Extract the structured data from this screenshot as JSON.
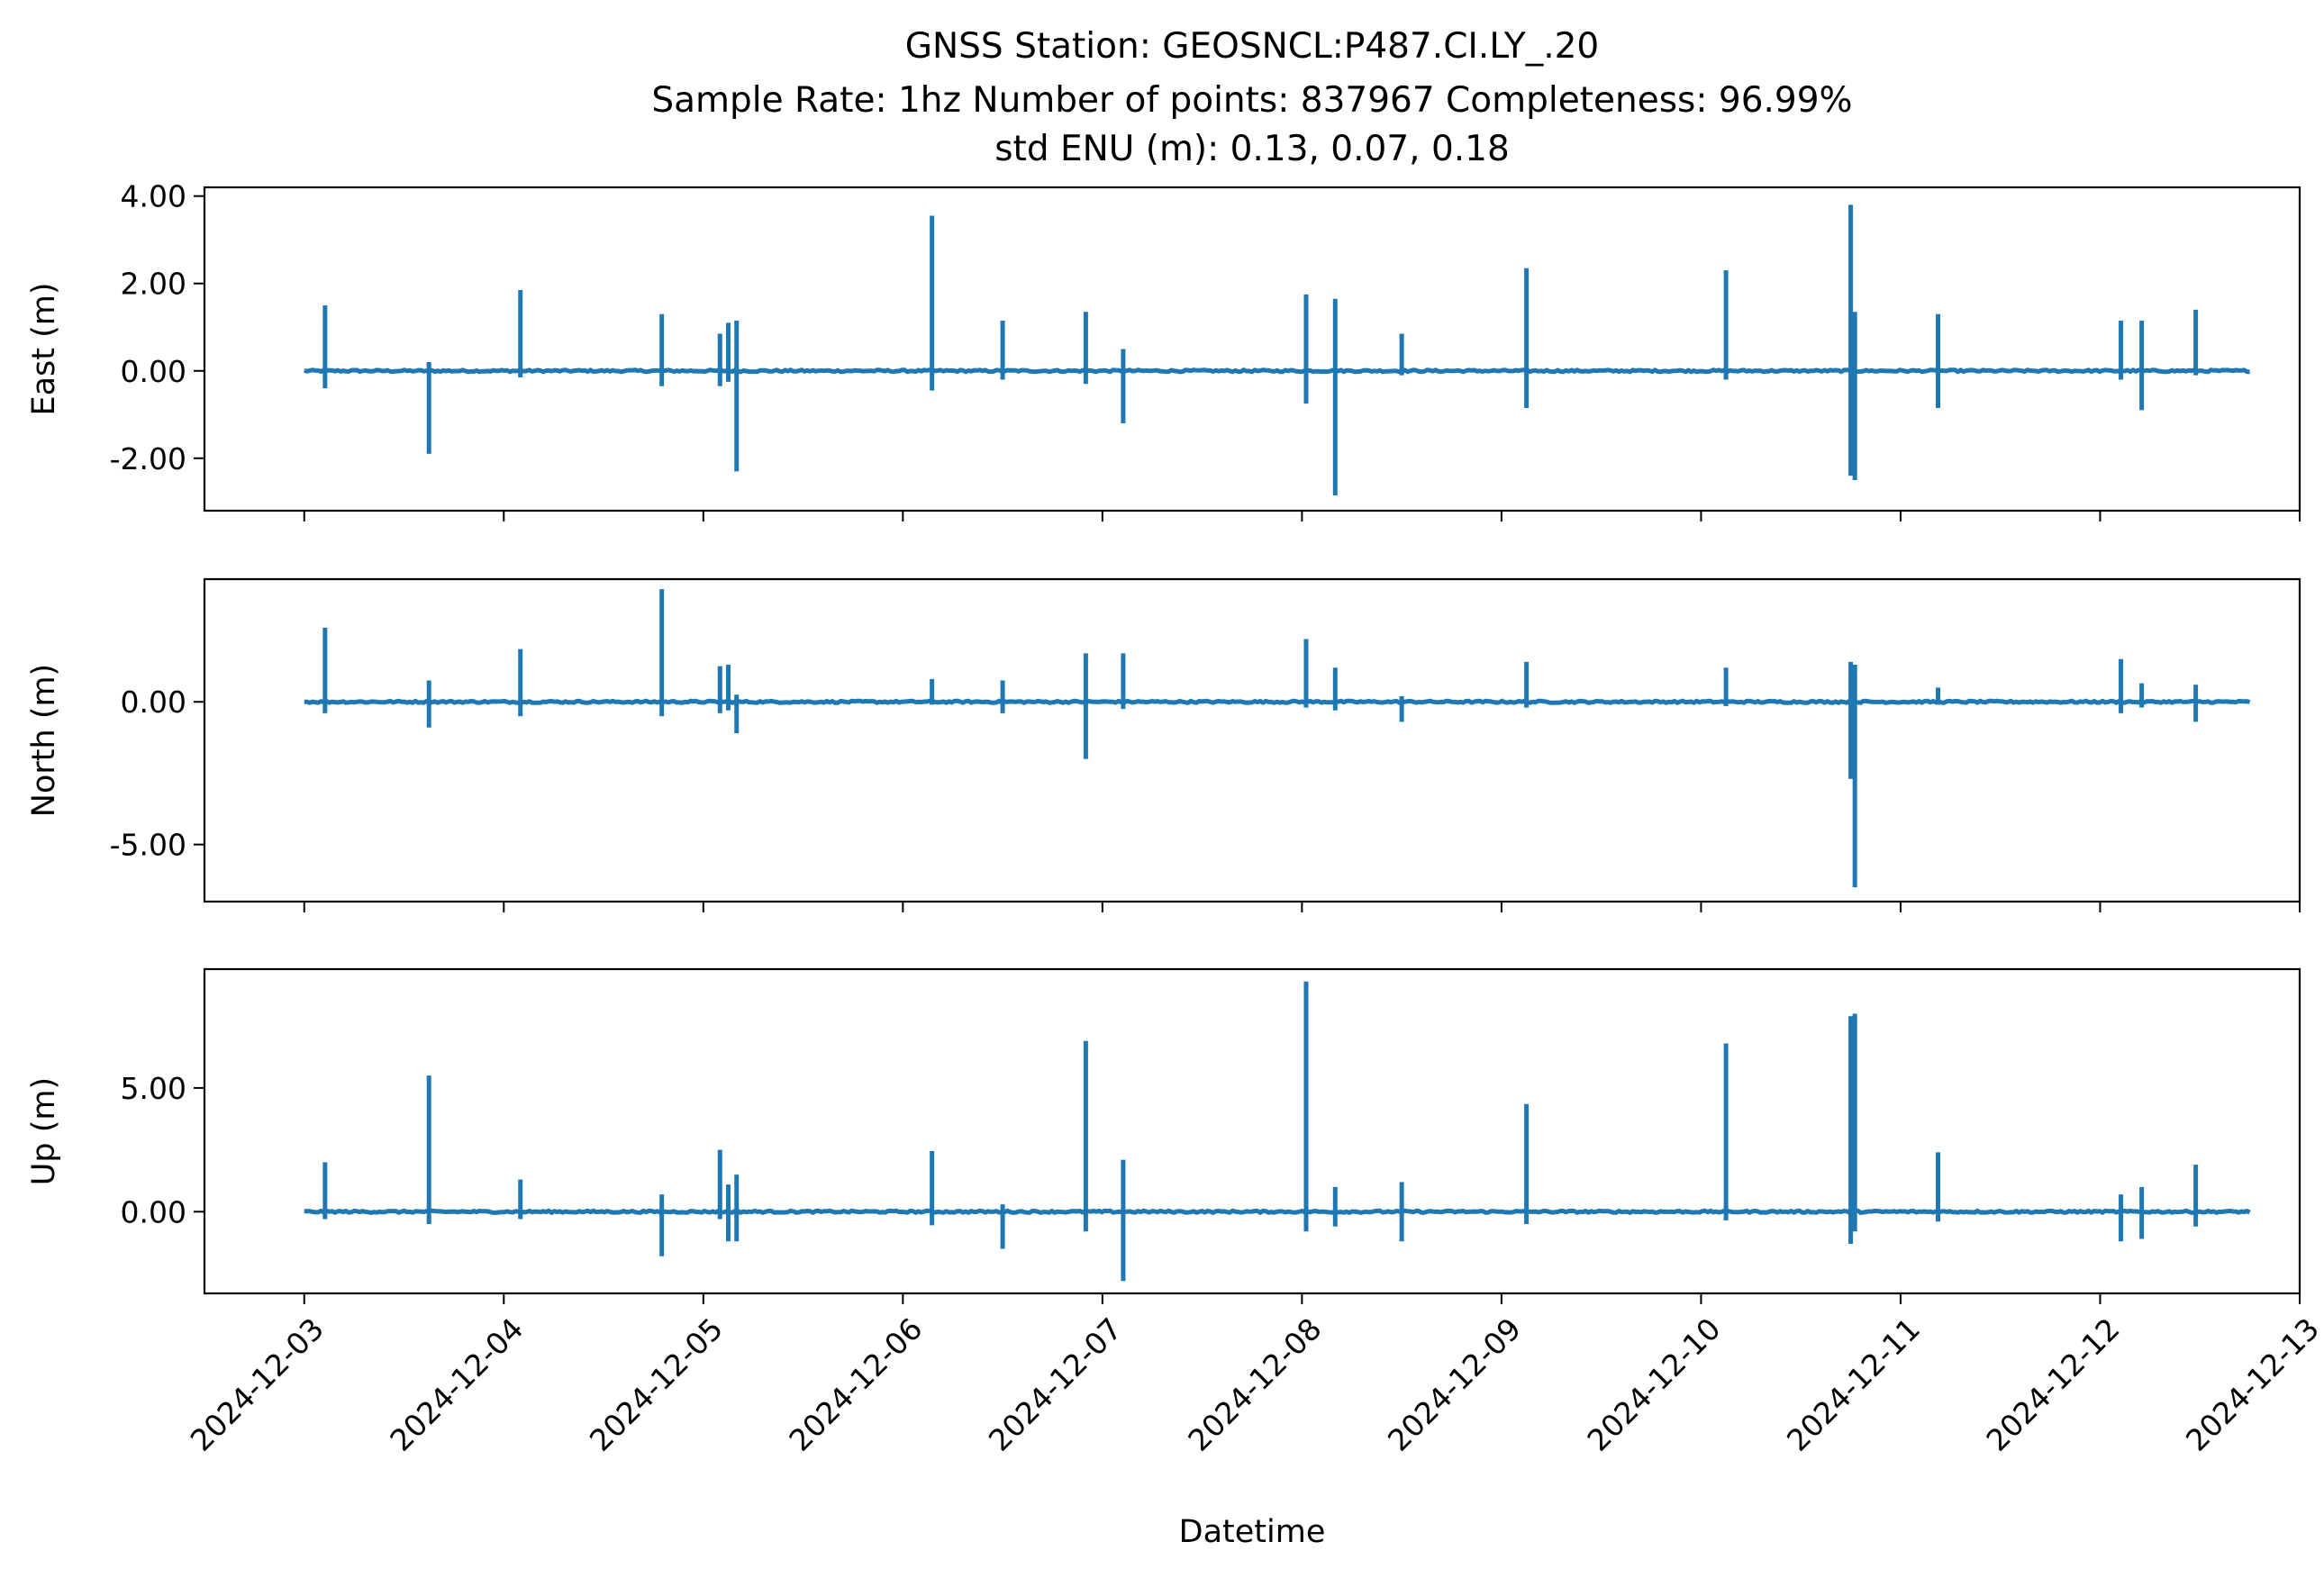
{
  "figure": {
    "title_lines": [
      "GNSS Station: GEOSNCL:P487.CI.LY_.20",
      "Sample Rate: 1hz   Number of points: 837967    Completeness:  96.99%",
      "std ENU (m):  0.13, 0.07, 0.18"
    ],
    "xlabel": "Datetime"
  },
  "chart_data": {
    "type": "line",
    "line_color": "#1f77b4",
    "grid": false,
    "legend": "none",
    "x_range": [
      "2024-12-02 12:00",
      "2024-12-13 00:00"
    ],
    "x_ticks": [
      "2024-12-03",
      "2024-12-04",
      "2024-12-05",
      "2024-12-06",
      "2024-12-07",
      "2024-12-08",
      "2024-12-09",
      "2024-12-10",
      "2024-12-11",
      "2024-12-12",
      "2024-12-13"
    ],
    "data_span": [
      "2024-12-03 00:00",
      "2024-12-12 18:00"
    ],
    "panels": [
      {
        "ylabel": "East (m)",
        "ylim": [
          -3.2,
          4.2
        ],
        "yticks": [
          4.0,
          2.0,
          0.0,
          -2.0
        ],
        "ytick_labels": [
          "4.00",
          "2.00",
          "0.00",
          "-2.00"
        ],
        "spikes": [
          {
            "t": "2024-12-03 02:30",
            "hi": 1.5,
            "lo": -0.4
          },
          {
            "t": "2024-12-03 15:00",
            "hi": 0.2,
            "lo": -1.9
          },
          {
            "t": "2024-12-04 02:00",
            "hi": 1.85,
            "lo": -0.15
          },
          {
            "t": "2024-12-04 19:00",
            "hi": 1.3,
            "lo": -0.35
          },
          {
            "t": "2024-12-05 02:00",
            "hi": 0.85,
            "lo": -0.35
          },
          {
            "t": "2024-12-05 03:00",
            "hi": 1.1,
            "lo": -0.25
          },
          {
            "t": "2024-12-05 04:00",
            "hi": 1.15,
            "lo": -2.3
          },
          {
            "t": "2024-12-06 03:30",
            "hi": 3.55,
            "lo": -0.45
          },
          {
            "t": "2024-12-06 12:00",
            "hi": 1.15,
            "lo": -0.2
          },
          {
            "t": "2024-12-06 22:00",
            "hi": 1.35,
            "lo": -0.3
          },
          {
            "t": "2024-12-07 02:30",
            "hi": 0.5,
            "lo": -1.2
          },
          {
            "t": "2024-12-08 00:30",
            "hi": 1.75,
            "lo": -0.75
          },
          {
            "t": "2024-12-08 04:00",
            "hi": 1.65,
            "lo": -2.85
          },
          {
            "t": "2024-12-08 12:00",
            "hi": 0.85,
            "lo": -0.1
          },
          {
            "t": "2024-12-09 03:00",
            "hi": 2.35,
            "lo": -0.85
          },
          {
            "t": "2024-12-10 03:00",
            "hi": 2.3,
            "lo": -0.2
          },
          {
            "t": "2024-12-10 18:00",
            "hi": 3.8,
            "lo": -2.4
          },
          {
            "t": "2024-12-10 18:30",
            "hi": 1.35,
            "lo": -2.5
          },
          {
            "t": "2024-12-11 04:30",
            "hi": 1.3,
            "lo": -0.85
          },
          {
            "t": "2024-12-12 02:30",
            "hi": 1.15,
            "lo": -0.2
          },
          {
            "t": "2024-12-12 05:00",
            "hi": 1.15,
            "lo": -0.9
          },
          {
            "t": "2024-12-12 11:30",
            "hi": 1.4,
            "lo": -0.1
          }
        ]
      },
      {
        "ylabel": "North (m)",
        "ylim": [
          -7.0,
          4.3
        ],
        "yticks": [
          0.0,
          -5.0
        ],
        "ytick_labels": [
          "0.00",
          "-5.00"
        ],
        "spikes": [
          {
            "t": "2024-12-03 02:30",
            "hi": 2.6,
            "lo": -0.4
          },
          {
            "t": "2024-12-03 15:00",
            "hi": 0.75,
            "lo": -0.9
          },
          {
            "t": "2024-12-04 02:00",
            "hi": 1.85,
            "lo": -0.5
          },
          {
            "t": "2024-12-04 19:00",
            "hi": 3.95,
            "lo": -0.5
          },
          {
            "t": "2024-12-05 02:00",
            "hi": 1.25,
            "lo": -0.4
          },
          {
            "t": "2024-12-05 03:00",
            "hi": 1.3,
            "lo": -0.3
          },
          {
            "t": "2024-12-05 04:00",
            "hi": 0.25,
            "lo": -1.1
          },
          {
            "t": "2024-12-06 03:30",
            "hi": 0.8,
            "lo": -0.1
          },
          {
            "t": "2024-12-06 12:00",
            "hi": 0.75,
            "lo": -0.4
          },
          {
            "t": "2024-12-06 22:00",
            "hi": 1.7,
            "lo": -2.0
          },
          {
            "t": "2024-12-07 02:30",
            "hi": 1.7,
            "lo": -0.25
          },
          {
            "t": "2024-12-08 00:30",
            "hi": 2.2,
            "lo": -0.2
          },
          {
            "t": "2024-12-08 04:00",
            "hi": 1.2,
            "lo": -0.3
          },
          {
            "t": "2024-12-08 12:00",
            "hi": 0.2,
            "lo": -0.7
          },
          {
            "t": "2024-12-09 03:00",
            "hi": 1.4,
            "lo": -0.2
          },
          {
            "t": "2024-12-10 03:00",
            "hi": 1.2,
            "lo": -0.15
          },
          {
            "t": "2024-12-10 18:00",
            "hi": 1.4,
            "lo": -2.7
          },
          {
            "t": "2024-12-10 18:30",
            "hi": 1.3,
            "lo": -6.5
          },
          {
            "t": "2024-12-11 04:30",
            "hi": 0.5,
            "lo": -0.1
          },
          {
            "t": "2024-12-12 02:30",
            "hi": 1.5,
            "lo": -0.4
          },
          {
            "t": "2024-12-12 05:00",
            "hi": 0.65,
            "lo": -0.2
          },
          {
            "t": "2024-12-12 11:30",
            "hi": 0.6,
            "lo": -0.7
          }
        ]
      },
      {
        "ylabel": "Up (m)",
        "ylim": [
          -3.3,
          9.8
        ],
        "yticks": [
          5.0,
          0.0
        ],
        "ytick_labels": [
          "5.00",
          "0.00"
        ],
        "spikes": [
          {
            "t": "2024-12-03 02:30",
            "hi": 2.0,
            "lo": -0.3
          },
          {
            "t": "2024-12-03 15:00",
            "hi": 5.5,
            "lo": -0.5
          },
          {
            "t": "2024-12-04 02:00",
            "hi": 1.3,
            "lo": -0.3
          },
          {
            "t": "2024-12-04 19:00",
            "hi": 0.7,
            "lo": -1.8
          },
          {
            "t": "2024-12-05 02:00",
            "hi": 2.5,
            "lo": -0.3
          },
          {
            "t": "2024-12-05 03:00",
            "hi": 1.1,
            "lo": -1.2
          },
          {
            "t": "2024-12-05 04:00",
            "hi": 1.5,
            "lo": -1.2
          },
          {
            "t": "2024-12-06 03:30",
            "hi": 2.45,
            "lo": -0.55
          },
          {
            "t": "2024-12-06 12:00",
            "hi": 0.3,
            "lo": -1.5
          },
          {
            "t": "2024-12-06 22:00",
            "hi": 6.9,
            "lo": -0.8
          },
          {
            "t": "2024-12-07 02:30",
            "hi": 2.1,
            "lo": -2.8
          },
          {
            "t": "2024-12-08 00:30",
            "hi": 9.3,
            "lo": -0.8
          },
          {
            "t": "2024-12-08 04:00",
            "hi": 1.0,
            "lo": -0.6
          },
          {
            "t": "2024-12-08 12:00",
            "hi": 1.2,
            "lo": -1.2
          },
          {
            "t": "2024-12-09 03:00",
            "hi": 4.35,
            "lo": -0.5
          },
          {
            "t": "2024-12-10 03:00",
            "hi": 6.8,
            "lo": -0.35
          },
          {
            "t": "2024-12-10 18:00",
            "hi": 7.9,
            "lo": -1.3
          },
          {
            "t": "2024-12-10 18:30",
            "hi": 8.0,
            "lo": -0.8
          },
          {
            "t": "2024-12-11 04:30",
            "hi": 2.4,
            "lo": -0.4
          },
          {
            "t": "2024-12-12 02:30",
            "hi": 0.7,
            "lo": -1.2
          },
          {
            "t": "2024-12-12 05:00",
            "hi": 1.0,
            "lo": -1.1
          },
          {
            "t": "2024-12-12 11:30",
            "hi": 1.9,
            "lo": -0.6
          }
        ]
      }
    ]
  }
}
